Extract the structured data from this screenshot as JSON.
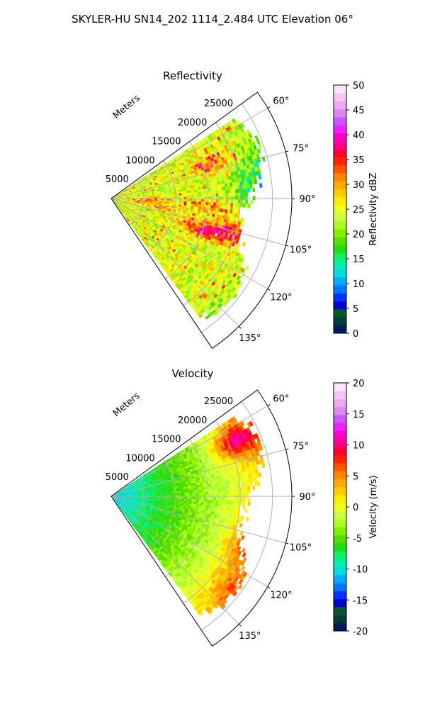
{
  "figure": {
    "title": "SKYLER-HU  SN14_202  1114_2.484 UTC Elevation 06°"
  },
  "chart_data": [
    {
      "type": "heatmap",
      "title": "Reflectivity",
      "projection": "polar sector",
      "range_label": "Meters",
      "range_ticks": [
        5000,
        10000,
        15000,
        20000,
        25000
      ],
      "range_max": 28000,
      "azimuth_ticks": [
        "60°",
        "75°",
        "90°",
        "105°",
        "120°",
        "135°"
      ],
      "azimuth_range": [
        54,
        146
      ],
      "grid": true,
      "colorbar": {
        "label": "Reflectivity dBZ",
        "min": 0,
        "max": 50,
        "ticks": [
          "0",
          "5",
          "10",
          "15",
          "20",
          "25",
          "30",
          "35",
          "40",
          "45",
          "50"
        ],
        "colors": [
          "#001a5c",
          "#053a3a",
          "#0a5530",
          "#0000cc",
          "#0033ff",
          "#0077ff",
          "#00aaff",
          "#00dddd",
          "#00f0b0",
          "#11ee66",
          "#22dd11",
          "#55dd00",
          "#88ee00",
          "#aaff22",
          "#ccff44",
          "#eeff22",
          "#ffee00",
          "#ffcc00",
          "#ffaa00",
          "#ff8800",
          "#ff5500",
          "#ff2200",
          "#ff0033",
          "#ff0088",
          "#ff00cc",
          "#ee22ff",
          "#cc55ff",
          "#dd88ee",
          "#eeaaee",
          "#f4c8f4",
          "#fbe6fb"
        ]
      }
    },
    {
      "type": "heatmap",
      "title": "Velocity",
      "projection": "polar sector",
      "range_label": "Meters",
      "range_ticks": [
        5000,
        10000,
        15000,
        20000,
        25000
      ],
      "range_max": 28000,
      "azimuth_ticks": [
        "60°",
        "75°",
        "90°",
        "105°",
        "120°",
        "135°"
      ],
      "azimuth_range": [
        54,
        146
      ],
      "grid": true,
      "colorbar": {
        "label": "Velocity (m/s)",
        "min": -20,
        "max": 20,
        "ticks": [
          "-20",
          "-15",
          "-10",
          "-5",
          "0",
          "5",
          "10",
          "15",
          "20"
        ],
        "colors": [
          "#001a5c",
          "#053a3a",
          "#0a5530",
          "#0000cc",
          "#0033ff",
          "#0077ff",
          "#00aaff",
          "#00dddd",
          "#00f0b0",
          "#11ee66",
          "#22dd11",
          "#55dd00",
          "#88ee00",
          "#aaff22",
          "#ccff44",
          "#eeff22",
          "#ffee00",
          "#ffcc00",
          "#ffaa00",
          "#ff8800",
          "#ff5500",
          "#ff2200",
          "#ff0033",
          "#ff0088",
          "#ff00cc",
          "#ee22ff",
          "#cc55ff",
          "#dd88ee",
          "#eeaaee",
          "#f4c8f4",
          "#fbe6fb"
        ]
      }
    }
  ]
}
